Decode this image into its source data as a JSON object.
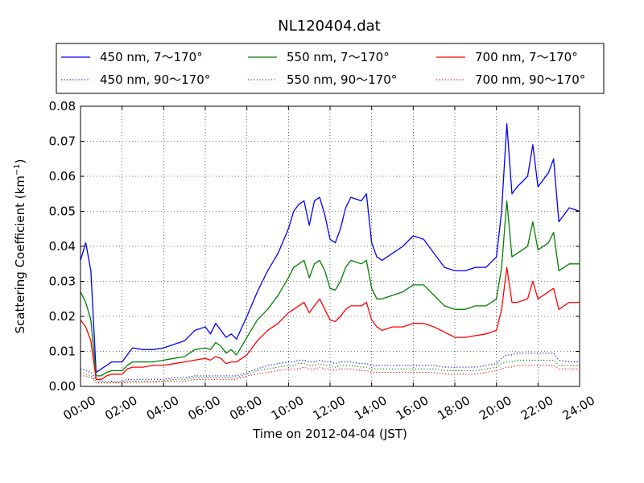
{
  "chart_data": {
    "type": "line",
    "title": "NL120404.dat",
    "xlabel": "Time on 2012-04-04 (JST)",
    "ylabel": "Scattering Coefficient (km",
    "ylabel_sup": "−1",
    "ylabel_close": ")",
    "xlim": [
      0,
      24
    ],
    "ylim": [
      0,
      0.08
    ],
    "grid": true,
    "legend_position": "top",
    "x_ticks": [
      {
        "value": 0,
        "label": "00:00"
      },
      {
        "value": 2,
        "label": "02:00"
      },
      {
        "value": 4,
        "label": "04:00"
      },
      {
        "value": 6,
        "label": "06:00"
      },
      {
        "value": 8,
        "label": "08:00"
      },
      {
        "value": 10,
        "label": "10:00"
      },
      {
        "value": 12,
        "label": "12:00"
      },
      {
        "value": 14,
        "label": "14:00"
      },
      {
        "value": 16,
        "label": "16:00"
      },
      {
        "value": 18,
        "label": "18:00"
      },
      {
        "value": 20,
        "label": "20:00"
      },
      {
        "value": 22,
        "label": "22:00"
      },
      {
        "value": 24,
        "label": "24:00"
      }
    ],
    "y_ticks": [
      {
        "value": 0,
        "label": "0.00"
      },
      {
        "value": 0.01,
        "label": "0.01"
      },
      {
        "value": 0.02,
        "label": "0.02"
      },
      {
        "value": 0.03,
        "label": "0.03"
      },
      {
        "value": 0.04,
        "label": "0.04"
      },
      {
        "value": 0.05,
        "label": "0.05"
      },
      {
        "value": 0.06,
        "label": "0.06"
      },
      {
        "value": 0.07,
        "label": "0.07"
      },
      {
        "value": 0.08,
        "label": "0.08"
      }
    ],
    "x": [
      0,
      0.25,
      0.5,
      0.75,
      1,
      1.25,
      1.5,
      2,
      2.25,
      2.5,
      3,
      3.5,
      4,
      4.5,
      5,
      5.5,
      6,
      6.25,
      6.5,
      6.75,
      7,
      7.25,
      7.5,
      8,
      8.5,
      9,
      9.5,
      10,
      10.25,
      10.5,
      10.75,
      11,
      11.25,
      11.5,
      11.75,
      12,
      12.25,
      12.5,
      12.75,
      13,
      13.5,
      13.75,
      14,
      14.25,
      14.5,
      15,
      15.5,
      16,
      16.5,
      17,
      17.5,
      18,
      18.5,
      19,
      19.5,
      20,
      20.25,
      20.5,
      20.75,
      21,
      21.5,
      21.75,
      22,
      22.5,
      22.75,
      23,
      23.5,
      24
    ],
    "series": [
      {
        "name": "450 nm, 7～170°",
        "color": "#0000ff",
        "style": "solid",
        "values": [
          0.036,
          0.041,
          0.033,
          0.004,
          0.005,
          0.006,
          0.007,
          0.007,
          0.009,
          0.011,
          0.0105,
          0.0105,
          0.011,
          0.012,
          0.013,
          0.016,
          0.017,
          0.015,
          0.018,
          0.016,
          0.014,
          0.015,
          0.0135,
          0.02,
          0.027,
          0.033,
          0.038,
          0.045,
          0.05,
          0.052,
          0.053,
          0.046,
          0.053,
          0.054,
          0.049,
          0.042,
          0.041,
          0.045,
          0.051,
          0.054,
          0.053,
          0.055,
          0.041,
          0.037,
          0.036,
          0.038,
          0.04,
          0.043,
          0.042,
          0.038,
          0.034,
          0.033,
          0.033,
          0.034,
          0.034,
          0.037,
          0.05,
          0.075,
          0.055,
          0.057,
          0.06,
          0.069,
          0.057,
          0.061,
          0.065,
          0.047,
          0.051,
          0.05
        ]
      },
      {
        "name": "450 nm, 90～170°",
        "color": "#0000ff",
        "style": "dotted",
        "values": [
          0.005,
          0.0045,
          0.004,
          0.002,
          0.0015,
          0.0015,
          0.0015,
          0.0015,
          0.002,
          0.002,
          0.002,
          0.002,
          0.002,
          0.0025,
          0.0025,
          0.003,
          0.003,
          0.003,
          0.003,
          0.003,
          0.003,
          0.003,
          0.003,
          0.004,
          0.005,
          0.006,
          0.0065,
          0.007,
          0.007,
          0.0075,
          0.0075,
          0.007,
          0.007,
          0.0075,
          0.007,
          0.007,
          0.0065,
          0.007,
          0.007,
          0.007,
          0.0065,
          0.0065,
          0.006,
          0.006,
          0.006,
          0.006,
          0.006,
          0.006,
          0.006,
          0.006,
          0.0055,
          0.0055,
          0.0055,
          0.0055,
          0.006,
          0.0065,
          0.008,
          0.009,
          0.009,
          0.0095,
          0.0095,
          0.0095,
          0.0095,
          0.0095,
          0.0095,
          0.0075,
          0.007,
          0.007
        ]
      },
      {
        "name": "550 nm, 7～170°",
        "color": "#008000",
        "style": "solid",
        "values": [
          0.027,
          0.024,
          0.019,
          0.003,
          0.003,
          0.004,
          0.0045,
          0.0045,
          0.006,
          0.007,
          0.007,
          0.007,
          0.0075,
          0.008,
          0.0085,
          0.0105,
          0.011,
          0.0105,
          0.0125,
          0.0115,
          0.0095,
          0.0105,
          0.009,
          0.014,
          0.019,
          0.022,
          0.026,
          0.031,
          0.034,
          0.035,
          0.036,
          0.031,
          0.035,
          0.036,
          0.033,
          0.028,
          0.0275,
          0.03,
          0.034,
          0.036,
          0.035,
          0.036,
          0.028,
          0.025,
          0.025,
          0.026,
          0.027,
          0.029,
          0.029,
          0.026,
          0.023,
          0.022,
          0.022,
          0.023,
          0.023,
          0.025,
          0.034,
          0.053,
          0.037,
          0.038,
          0.04,
          0.047,
          0.039,
          0.041,
          0.044,
          0.033,
          0.035,
          0.035
        ]
      },
      {
        "name": "550 nm, 90～170°",
        "color": "#008000",
        "style": "dotted",
        "values": [
          0.004,
          0.0035,
          0.003,
          0.0015,
          0.001,
          0.001,
          0.001,
          0.001,
          0.0015,
          0.0015,
          0.0015,
          0.0015,
          0.0015,
          0.002,
          0.002,
          0.0025,
          0.0025,
          0.0025,
          0.0025,
          0.0025,
          0.0025,
          0.0025,
          0.0025,
          0.0035,
          0.0045,
          0.005,
          0.0055,
          0.006,
          0.006,
          0.0065,
          0.0065,
          0.006,
          0.006,
          0.0065,
          0.006,
          0.006,
          0.0055,
          0.006,
          0.006,
          0.006,
          0.0055,
          0.0055,
          0.005,
          0.005,
          0.005,
          0.005,
          0.005,
          0.005,
          0.005,
          0.005,
          0.0045,
          0.0045,
          0.0045,
          0.0045,
          0.005,
          0.0055,
          0.0065,
          0.007,
          0.007,
          0.0075,
          0.0075,
          0.0075,
          0.0075,
          0.0075,
          0.0075,
          0.006,
          0.006,
          0.006
        ]
      },
      {
        "name": "700 nm, 7～170°",
        "color": "#ff0000",
        "style": "solid",
        "values": [
          0.019,
          0.017,
          0.013,
          0.002,
          0.002,
          0.003,
          0.0035,
          0.0035,
          0.005,
          0.0055,
          0.0055,
          0.006,
          0.006,
          0.0065,
          0.007,
          0.0075,
          0.008,
          0.0075,
          0.0085,
          0.008,
          0.0065,
          0.007,
          0.007,
          0.009,
          0.013,
          0.016,
          0.018,
          0.021,
          0.022,
          0.023,
          0.024,
          0.021,
          0.023,
          0.025,
          0.022,
          0.019,
          0.0185,
          0.02,
          0.022,
          0.023,
          0.023,
          0.024,
          0.019,
          0.017,
          0.016,
          0.017,
          0.017,
          0.018,
          0.018,
          0.017,
          0.0155,
          0.014,
          0.014,
          0.0145,
          0.015,
          0.016,
          0.022,
          0.034,
          0.024,
          0.024,
          0.025,
          0.03,
          0.025,
          0.027,
          0.028,
          0.022,
          0.024,
          0.024
        ]
      },
      {
        "name": "700 nm, 90～170°",
        "color": "#ff0000",
        "style": "dotted",
        "values": [
          0.003,
          0.003,
          0.0025,
          0.001,
          0.001,
          0.001,
          0.001,
          0.001,
          0.001,
          0.0012,
          0.0012,
          0.0012,
          0.0015,
          0.0015,
          0.0015,
          0.002,
          0.002,
          0.002,
          0.002,
          0.002,
          0.002,
          0.002,
          0.002,
          0.003,
          0.0035,
          0.004,
          0.0045,
          0.005,
          0.005,
          0.005,
          0.0055,
          0.005,
          0.005,
          0.0055,
          0.005,
          0.005,
          0.0045,
          0.005,
          0.005,
          0.005,
          0.0045,
          0.0045,
          0.004,
          0.004,
          0.004,
          0.004,
          0.004,
          0.004,
          0.004,
          0.004,
          0.0035,
          0.0035,
          0.0035,
          0.0035,
          0.004,
          0.0045,
          0.005,
          0.0055,
          0.0055,
          0.006,
          0.006,
          0.006,
          0.006,
          0.006,
          0.006,
          0.005,
          0.005,
          0.005
        ]
      }
    ]
  }
}
